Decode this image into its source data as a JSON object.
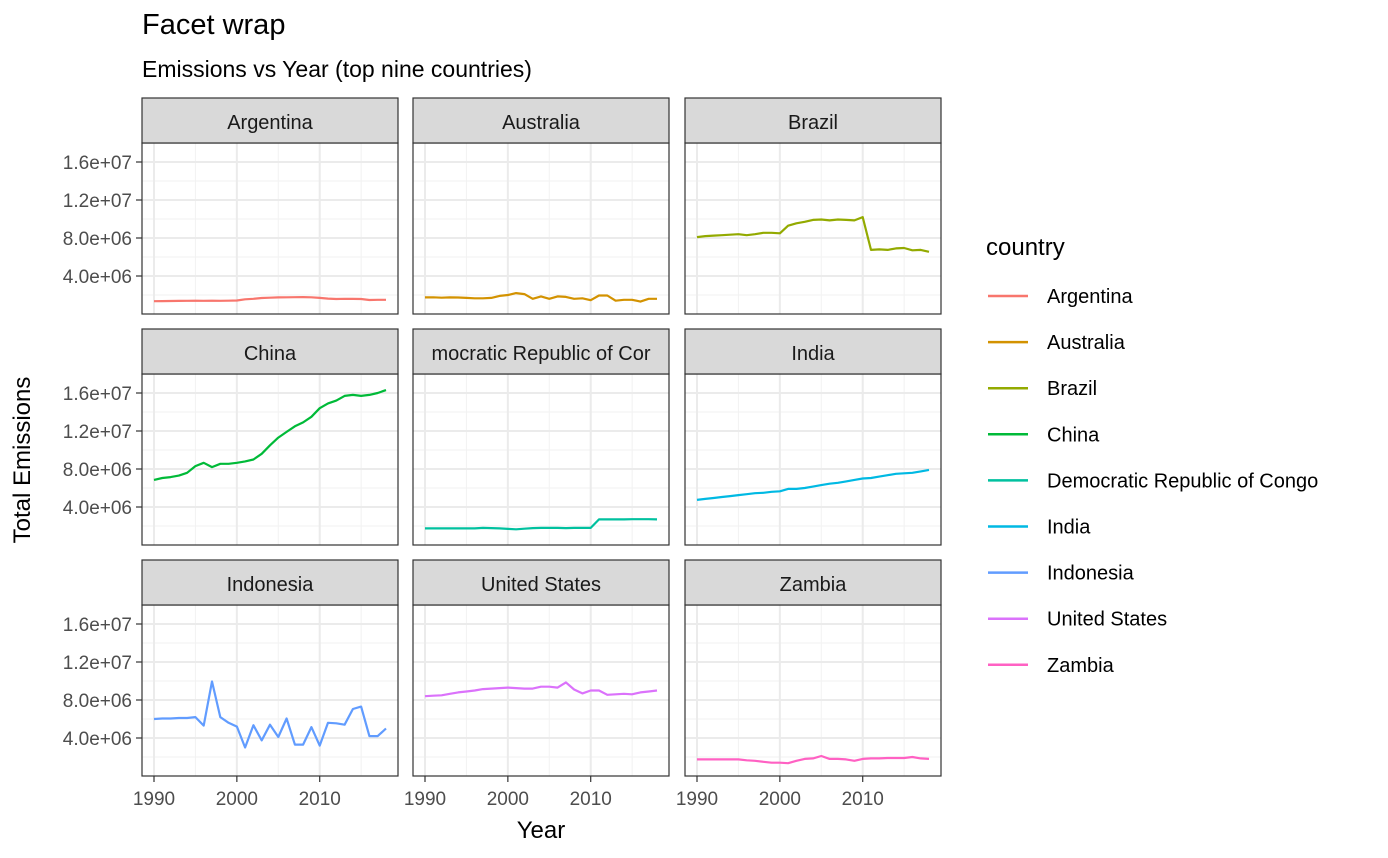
{
  "chart_data": {
    "type": "line",
    "title": "Facet wrap",
    "subtitle": "Emissions vs Year (top nine countries)",
    "xlabel": "Year",
    "ylabel": "Total Emissions",
    "xlim": [
      1990,
      2018
    ],
    "ylim": [
      0,
      18000000
    ],
    "x_ticks": [
      1990,
      2000,
      2010
    ],
    "x_tick_labels": [
      "1990",
      "2000",
      "2010"
    ],
    "y_ticks": [
      4000000,
      8000000,
      12000000,
      16000000
    ],
    "y_tick_labels": [
      "4.0e+06",
      "8.0e+06",
      "1.2e+07",
      "1.6e+07"
    ],
    "grid": true,
    "legend": {
      "title": "country",
      "position": "right"
    },
    "facet_strip_labels": [
      "Argentina",
      "Australia",
      "Brazil",
      "China",
      "mocratic Republic of Cor",
      "India",
      "Indonesia",
      "United States",
      "Zambia"
    ],
    "x": [
      1990,
      1991,
      1992,
      1993,
      1994,
      1995,
      1996,
      1997,
      1998,
      1999,
      2000,
      2001,
      2002,
      2003,
      2004,
      2005,
      2006,
      2007,
      2008,
      2009,
      2010,
      2011,
      2012,
      2013,
      2014,
      2015,
      2016,
      2017,
      2018
    ],
    "series": [
      {
        "name": "Argentina",
        "color": "#F8766D",
        "values": [
          1350000,
          1360000,
          1370000,
          1380000,
          1390000,
          1400000,
          1390000,
          1400000,
          1390000,
          1400000,
          1420000,
          1550000,
          1600000,
          1680000,
          1720000,
          1750000,
          1760000,
          1770000,
          1780000,
          1760000,
          1700000,
          1620000,
          1580000,
          1600000,
          1590000,
          1580000,
          1470000,
          1500000,
          1500000
        ]
      },
      {
        "name": "Australia",
        "color": "#D39200",
        "values": [
          1750000,
          1760000,
          1720000,
          1750000,
          1740000,
          1700000,
          1650000,
          1650000,
          1700000,
          1900000,
          2000000,
          2200000,
          2100000,
          1600000,
          1850000,
          1600000,
          1850000,
          1800000,
          1600000,
          1650000,
          1450000,
          1950000,
          1950000,
          1400000,
          1500000,
          1500000,
          1300000,
          1600000,
          1600000
        ]
      },
      {
        "name": "Brazil",
        "color": "#93AA00",
        "values": [
          8100000,
          8200000,
          8250000,
          8300000,
          8350000,
          8400000,
          8300000,
          8400000,
          8550000,
          8550000,
          8500000,
          9300000,
          9550000,
          9700000,
          9900000,
          9950000,
          9850000,
          9950000,
          9900000,
          9850000,
          10200000,
          6750000,
          6800000,
          6750000,
          6900000,
          6950000,
          6700000,
          6750000,
          6550000
        ]
      },
      {
        "name": "China",
        "color": "#00BA38",
        "values": [
          6850000,
          7050000,
          7150000,
          7300000,
          7600000,
          8300000,
          8650000,
          8200000,
          8550000,
          8550000,
          8650000,
          8800000,
          9000000,
          9600000,
          10500000,
          11300000,
          11900000,
          12500000,
          12900000,
          13500000,
          14400000,
          14900000,
          15200000,
          15700000,
          15800000,
          15700000,
          15800000,
          16000000,
          16300000
        ]
      },
      {
        "name": "Democratic Republic of Congo",
        "color": "#00C19F",
        "values": [
          1750000,
          1750000,
          1750000,
          1750000,
          1750000,
          1750000,
          1750000,
          1800000,
          1780000,
          1750000,
          1700000,
          1650000,
          1720000,
          1780000,
          1800000,
          1800000,
          1800000,
          1780000,
          1800000,
          1800000,
          1800000,
          2700000,
          2700000,
          2700000,
          2700000,
          2720000,
          2720000,
          2720000,
          2700000
        ]
      },
      {
        "name": "India",
        "color": "#00B9E3",
        "values": [
          4750000,
          4850000,
          4950000,
          5050000,
          5150000,
          5250000,
          5350000,
          5450000,
          5500000,
          5600000,
          5650000,
          5900000,
          5900000,
          6000000,
          6150000,
          6300000,
          6450000,
          6550000,
          6700000,
          6850000,
          7000000,
          7050000,
          7200000,
          7350000,
          7500000,
          7550000,
          7600000,
          7750000,
          7900000
        ]
      },
      {
        "name": "Indonesia",
        "color": "#619CFF",
        "values": [
          6000000,
          6050000,
          6050000,
          6100000,
          6100000,
          6200000,
          5300000,
          9950000,
          6200000,
          5600000,
          5200000,
          3000000,
          5350000,
          3750000,
          5400000,
          4100000,
          6050000,
          3300000,
          3300000,
          5150000,
          3200000,
          5600000,
          5550000,
          5400000,
          7050000,
          7300000,
          4200000,
          4200000,
          5000000
        ]
      },
      {
        "name": "United States",
        "color": "#DB72FB",
        "values": [
          8400000,
          8450000,
          8500000,
          8650000,
          8800000,
          8900000,
          9000000,
          9150000,
          9200000,
          9250000,
          9300000,
          9250000,
          9200000,
          9200000,
          9400000,
          9400000,
          9300000,
          9850000,
          9100000,
          8700000,
          9000000,
          9000000,
          8550000,
          8600000,
          8650000,
          8600000,
          8800000,
          8900000,
          9000000
        ]
      },
      {
        "name": "Zambia",
        "color": "#FF61C3",
        "values": [
          1750000,
          1750000,
          1750000,
          1750000,
          1750000,
          1750000,
          1650000,
          1600000,
          1500000,
          1400000,
          1400000,
          1350000,
          1600000,
          1800000,
          1850000,
          2100000,
          1800000,
          1800000,
          1750000,
          1600000,
          1800000,
          1850000,
          1850000,
          1900000,
          1900000,
          1900000,
          2000000,
          1850000,
          1800000
        ]
      }
    ]
  }
}
